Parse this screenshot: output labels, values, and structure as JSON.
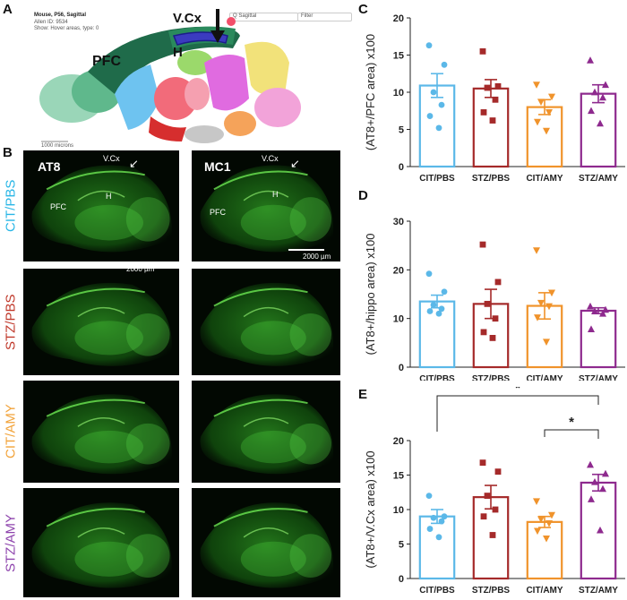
{
  "panels": {
    "A": "A",
    "B": "B",
    "C": "C",
    "D": "D",
    "E": "E"
  },
  "atlas": {
    "title": "Mouse, P56, Sagittal",
    "line2": "Allen ID: 9534",
    "line3": "Show: Hover areas, type: 0",
    "vcx": "V.Cx",
    "pfc": "PFC",
    "h": "H",
    "search_a": "Q Sagittal",
    "search_b": "Filter",
    "scale": "1000 microns"
  },
  "micro": {
    "col1": "AT8",
    "col2": "MC1",
    "vcx": "V.Cx",
    "pfc": "PFC",
    "h": "H",
    "scalebar": "2000 µm",
    "rows": [
      "CIT/PBS",
      "STZ/PBS",
      "CIT/AMY",
      "STZ/AMY"
    ],
    "row_colors": [
      "#29b6e6",
      "#c0392b",
      "#f2a33a",
      "#8e44ad"
    ]
  },
  "chart_data": [
    {
      "type": "bar",
      "title": "",
      "xlabel": "",
      "ylabel": "(AT8+/PFC area) x100",
      "ylim": [
        0,
        20
      ],
      "yticks": [
        0,
        5,
        10,
        15,
        20
      ],
      "categories": [
        "CIT/PBS",
        "STZ/PBS",
        "CIT/AMY",
        "STZ/AMY"
      ],
      "values": [
        10.9,
        10.5,
        8.0,
        9.8
      ],
      "errors": [
        1.6,
        1.2,
        1.0,
        1.2
      ],
      "colors": [
        "#5bb8e8",
        "#a52a2a",
        "#f0932b",
        "#8e2a8e"
      ],
      "markers": [
        "circle",
        "square",
        "triangle-down",
        "triangle-up"
      ],
      "points": [
        [
          16.3,
          13.7,
          10.0,
          8.3,
          6.8,
          5.2
        ],
        [
          15.5,
          10.8,
          10.6,
          9.0,
          7.3,
          6.2
        ],
        [
          11.0,
          9.4,
          8.7,
          7.3,
          6.0,
          4.8
        ],
        [
          14.3,
          11.0,
          10.0,
          9.3,
          7.5,
          5.8
        ]
      ],
      "significance": []
    },
    {
      "type": "bar",
      "title": "",
      "xlabel": "",
      "ylabel": "(AT8+/hippo area) x100",
      "ylim": [
        0,
        30
      ],
      "yticks": [
        0,
        10,
        20,
        30
      ],
      "categories": [
        "CIT/PBS",
        "STZ/PBS",
        "CIT/AMY",
        "STZ/AMY"
      ],
      "values": [
        13.5,
        13.0,
        12.6,
        11.6
      ],
      "errors": [
        1.3,
        3.0,
        2.7,
        0.6
      ],
      "colors": [
        "#5bb8e8",
        "#a52a2a",
        "#f0932b",
        "#8e2a8e"
      ],
      "markers": [
        "circle",
        "square",
        "triangle-down",
        "triangle-up"
      ],
      "points": [
        [
          19.2,
          15.5,
          12.8,
          12.0,
          11.5,
          11.0
        ],
        [
          25.2,
          17.5,
          13.0,
          10.0,
          7.2,
          6.0
        ],
        [
          24.0,
          15.3,
          13.2,
          12.5,
          10.2,
          5.2
        ],
        [
          12.5,
          11.8,
          11.5,
          11.0,
          7.8
        ]
      ],
      "significance": []
    },
    {
      "type": "bar",
      "title": "",
      "xlabel": "",
      "ylabel": "(AT8+/V.Cx area) x100",
      "ylim": [
        0,
        20
      ],
      "yticks": [
        0,
        5,
        10,
        15,
        20
      ],
      "categories": [
        "CIT/PBS",
        "STZ/PBS",
        "CIT/AMY",
        "STZ/AMY"
      ],
      "values": [
        9.0,
        11.8,
        8.2,
        13.9
      ],
      "errors": [
        1.0,
        1.7,
        0.8,
        1.2
      ],
      "colors": [
        "#5bb8e8",
        "#a52a2a",
        "#f0932b",
        "#8e2a8e"
      ],
      "markers": [
        "circle",
        "square",
        "triangle-down",
        "triangle-up"
      ],
      "points": [
        [
          12.0,
          9.0,
          8.8,
          8.3,
          7.2,
          6.0
        ],
        [
          16.8,
          15.5,
          12.0,
          10.0,
          9.0,
          6.3
        ],
        [
          11.2,
          9.2,
          8.6,
          8.0,
          6.9,
          5.8
        ],
        [
          16.5,
          15.2,
          14.0,
          13.0,
          11.5,
          7.0
        ]
      ],
      "significance": [
        {
          "from": 0,
          "to": 3,
          "label": "*",
          "level": 1
        },
        {
          "from": 2,
          "to": 3,
          "label": "*",
          "level": 0
        }
      ]
    }
  ]
}
